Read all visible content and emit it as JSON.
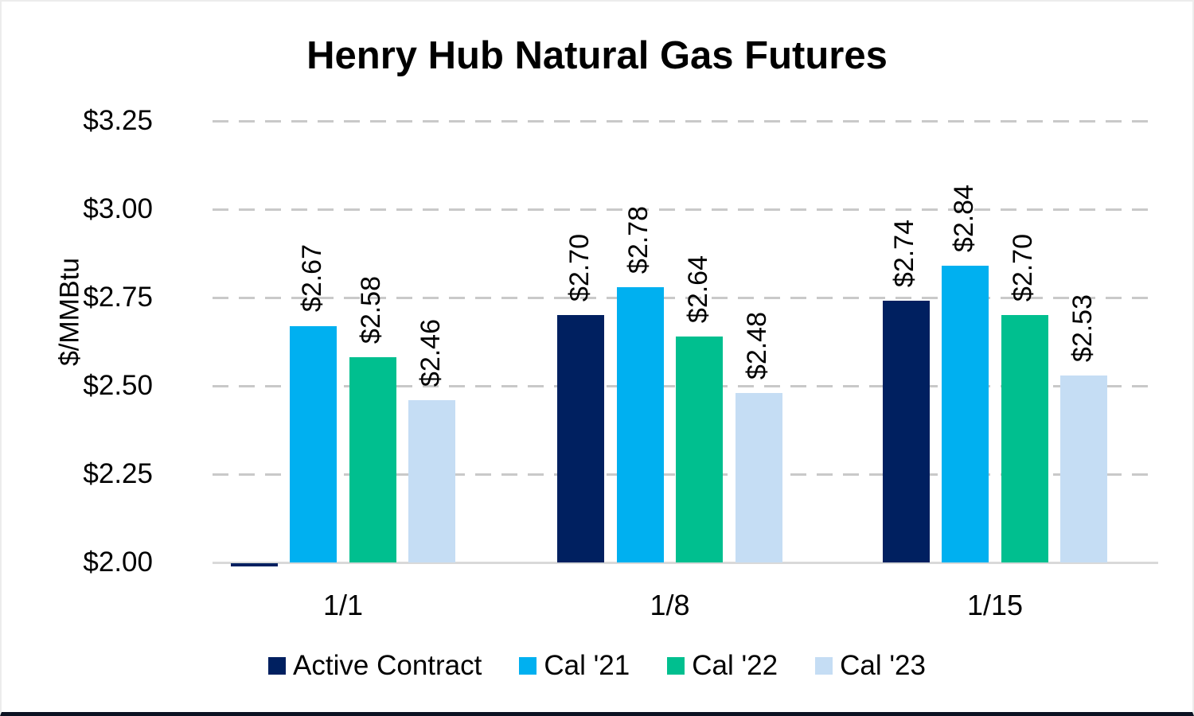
{
  "chart_data": {
    "type": "bar",
    "title": "Henry Hub Natural Gas Futures",
    "ylabel": "$/MMBtu",
    "xlabel": "",
    "categories": [
      "1/1",
      "1/8",
      "1/15"
    ],
    "series": [
      {
        "name": "Active Contract",
        "color": "#002060",
        "values": [
          2.0,
          2.7,
          2.74
        ],
        "labels": [
          "",
          "$2.70",
          "$2.74"
        ]
      },
      {
        "name": "Cal '21",
        "color": "#00B0F0",
        "values": [
          2.67,
          2.78,
          2.84
        ],
        "labels": [
          "$2.67",
          "$2.78",
          "$2.84"
        ]
      },
      {
        "name": "Cal '22",
        "color": "#00BF8F",
        "values": [
          2.58,
          2.64,
          2.7
        ],
        "labels": [
          "$2.58",
          "$2.64",
          "$2.70"
        ]
      },
      {
        "name": "Cal '23",
        "color": "#C5DDF4",
        "values": [
          2.46,
          2.48,
          2.53
        ],
        "labels": [
          "$2.46",
          "$2.48",
          "$2.53"
        ]
      }
    ],
    "y_ticks": [
      "$3.25",
      "$3.00",
      "$2.75",
      "$2.50",
      "$2.25",
      "$2.00"
    ],
    "y_tick_values": [
      3.25,
      3.0,
      2.75,
      2.5,
      2.25,
      2.0
    ],
    "ylim": [
      2.0,
      3.25
    ],
    "grid": "horizontal-dashed",
    "gridline_color": "#C9C9C9",
    "axis_line_color": "#D9D9D9",
    "legend_position": "bottom",
    "frame_bottom_border_color": "#0B1222"
  }
}
